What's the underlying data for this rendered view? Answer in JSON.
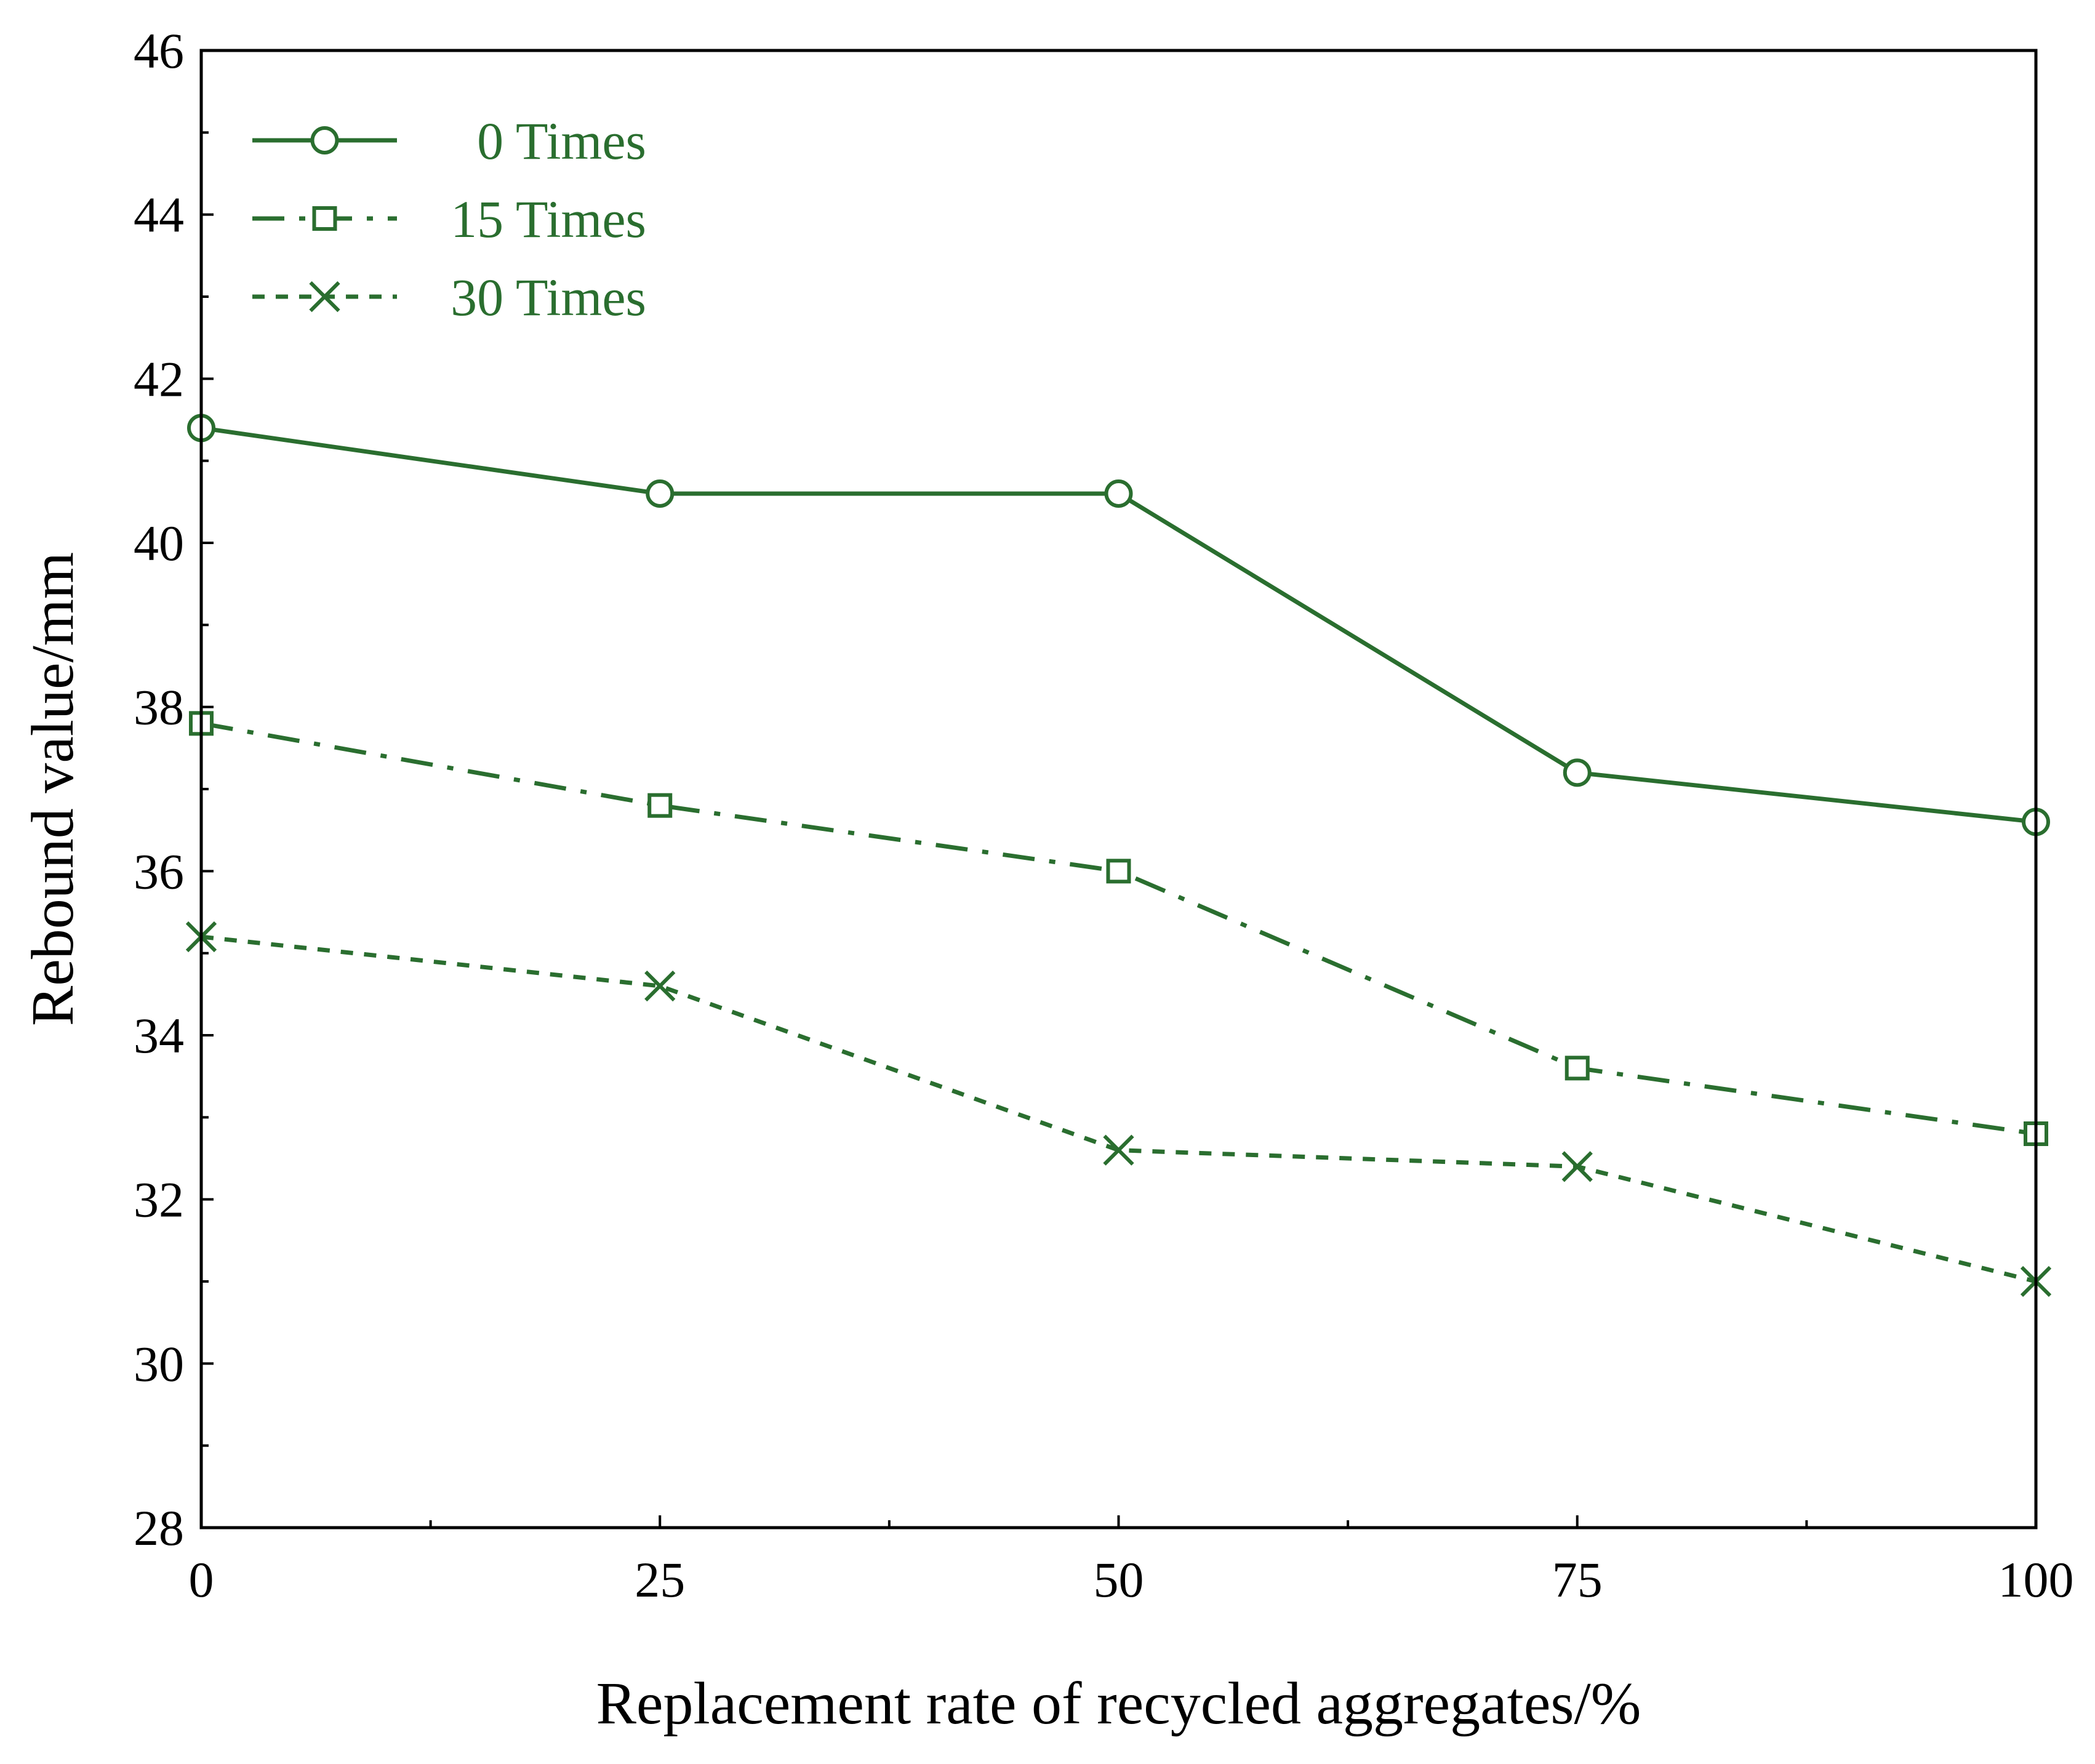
{
  "chart_data": {
    "type": "line",
    "title": "",
    "xlabel": "Replacement rate of recycled aggregates/%",
    "ylabel": "Rebound value/mm",
    "x": [
      0,
      25,
      50,
      75,
      100
    ],
    "xlim": [
      0,
      100
    ],
    "ylim": [
      28,
      46
    ],
    "xticks": [
      "0",
      "25",
      "50",
      "75",
      "100"
    ],
    "yticks": [
      "28",
      "30",
      "32",
      "34",
      "36",
      "38",
      "40",
      "42",
      "44",
      "46"
    ],
    "grid": false,
    "legend_position": "top-left",
    "color": "#2a6e2f",
    "series": [
      {
        "name": "0 Times",
        "marker": "circle",
        "line_style": "solid",
        "values": [
          41.4,
          40.6,
          40.6,
          37.2,
          36.6
        ]
      },
      {
        "name": "15 Times",
        "marker": "square",
        "line_style": "dash-dot",
        "values": [
          37.8,
          36.8,
          36.0,
          33.6,
          32.8
        ]
      },
      {
        "name": "30 Times",
        "marker": "x",
        "line_style": "dotted",
        "values": [
          35.2,
          34.6,
          32.6,
          32.4,
          31.0
        ]
      }
    ]
  }
}
